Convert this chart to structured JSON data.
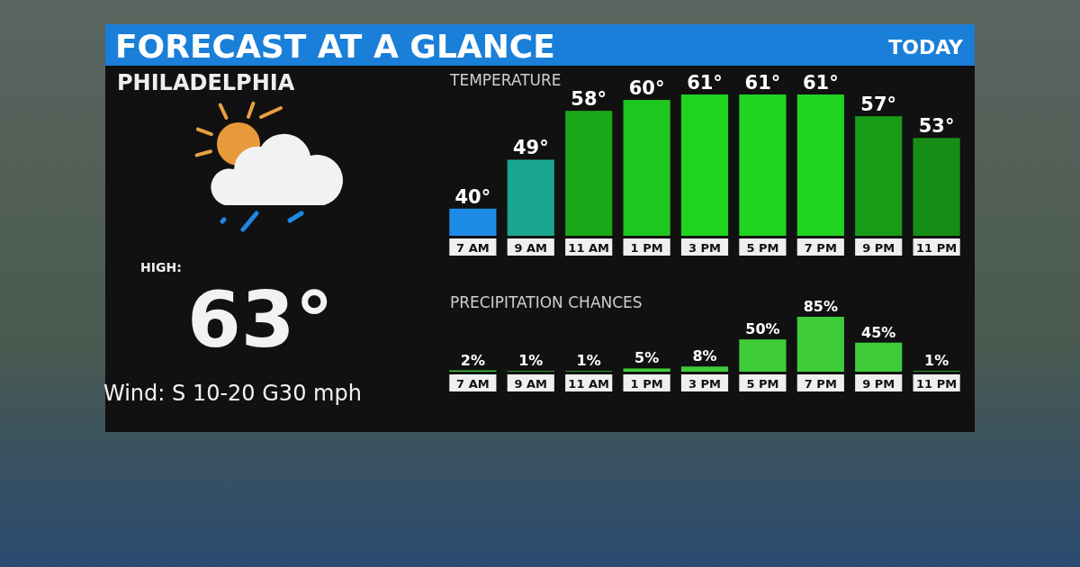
{
  "chart_data": [
    {
      "type": "other",
      "title": "FORECAST AT A GLANCE",
      "annotations": [
        "TODAY",
        "PHILADELPHIA",
        "HIGH:",
        "63°",
        "Wind: S 10-20 G30 mph"
      ]
    },
    {
      "type": "bar",
      "title": "TEMPERATURE",
      "categories": [
        "7 AM",
        "9 AM",
        "11 AM",
        "1 PM",
        "3 PM",
        "5 PM",
        "7 PM",
        "9 PM",
        "11 PM"
      ],
      "values": [
        40,
        49,
        58,
        60,
        61,
        61,
        61,
        57,
        53
      ],
      "colors": [
        "#1e8ce6",
        "#1aa590",
        "#18a818",
        "#1ec81e",
        "#20d420",
        "#20d420",
        "#20d420",
        "#189c18",
        "#168e16"
      ],
      "value_labels": [
        "40°",
        "49°",
        "58°",
        "60°",
        "61°",
        "61°",
        "61°",
        "57°",
        "53°"
      ],
      "ylim": [
        35,
        61
      ]
    },
    {
      "type": "bar",
      "title": "PRECIPITATION CHANCES",
      "categories": [
        "7 AM",
        "9 AM",
        "11 AM",
        "1 PM",
        "3 PM",
        "5 PM",
        "7 PM",
        "9 PM",
        "11 PM"
      ],
      "values": [
        2,
        1,
        1,
        5,
        8,
        50,
        85,
        45,
        1
      ],
      "color": "#3fcc3a",
      "value_labels": [
        "2%",
        "1%",
        "1%",
        "5%",
        "8%",
        "50%",
        "85%",
        "45%",
        "1%"
      ]
    }
  ]
}
